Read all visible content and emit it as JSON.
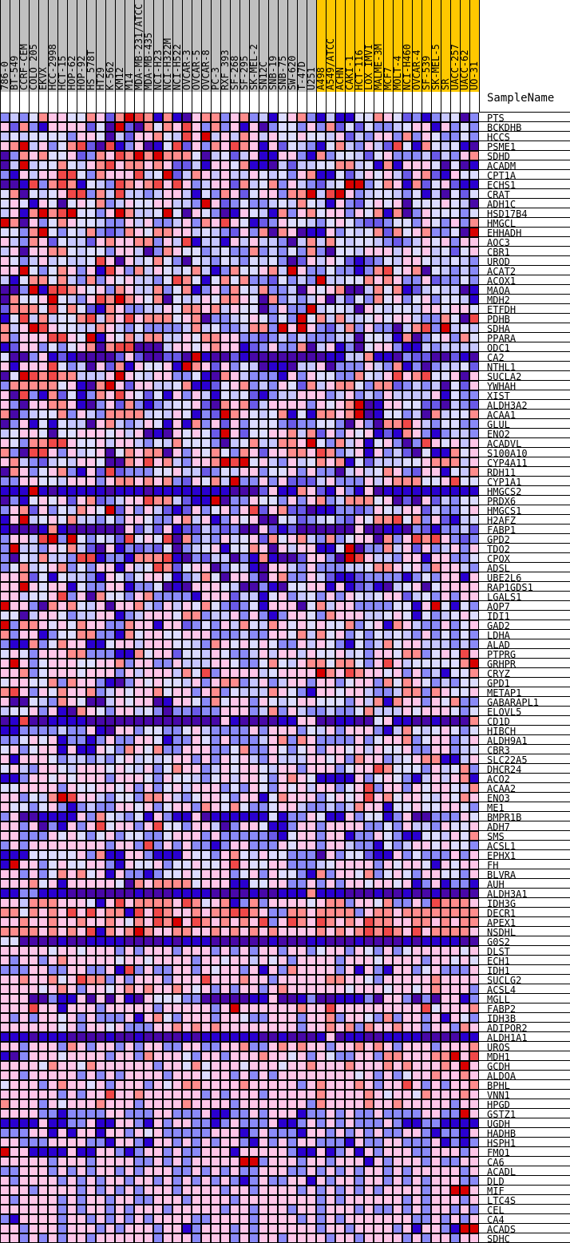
{
  "chart_data": {
    "type": "heatmap",
    "column_header_title": "SampleName",
    "group_colors": {
      "group1": "#c0c0c0",
      "group2": "#ffc800"
    },
    "color_scale": [
      "#2a00d0",
      "#4808a8",
      "#6a5ae8",
      "#8a8af8",
      "#c6c6ff",
      "#dcdcff",
      "#ffc6e8",
      "#ff8c8c",
      "#f04848",
      "#d80000"
    ],
    "color_scale_meaning": "low (blue) to high (red), levels 0-9",
    "columns": [
      "786-0",
      "BT-549",
      "CCRF-CEM",
      "COLO 205",
      "EKVX",
      "HCC-2998",
      "HCT-15",
      "HOP-62",
      "HOP-92",
      "HS 578T",
      "HT29",
      "K-562",
      "KM12",
      "M14",
      "MDA-MB-231/ATCC",
      "MDA-MB-435",
      "NCI-H23",
      "NCI-H322M",
      "NCI-H522",
      "OVCAR-3",
      "OVCAR-5",
      "OVCAR-8",
      "PC-3",
      "RXF 393",
      "SF-268",
      "SF-295",
      "SK-MEL-2",
      "SN12C",
      "SNB-19",
      "SNB-75",
      "SW-620",
      "T-47D",
      "U251",
      "A498",
      "A549/ATCC",
      "ACHN",
      "CAKI-1",
      "HCT-116",
      "LOX IMVI",
      "MALME-3M",
      "MCF7",
      "MOLT-4",
      "NCI-H460",
      "OVCAR-4",
      "SF-539",
      "SK-MEL-5",
      "SR",
      "UACC-257",
      "UACC-62",
      "UO-31"
    ],
    "column_groups": [
      "group1",
      "group1",
      "group1",
      "group1",
      "group1",
      "group1",
      "group1",
      "group1",
      "group1",
      "group1",
      "group1",
      "group1",
      "group1",
      "group1",
      "group1",
      "group1",
      "group1",
      "group1",
      "group1",
      "group1",
      "group1",
      "group1",
      "group1",
      "group1",
      "group1",
      "group1",
      "group1",
      "group1",
      "group1",
      "group1",
      "group1",
      "group1",
      "group1",
      "group2",
      "group2",
      "group2",
      "group2",
      "group2",
      "group2",
      "group2",
      "group2",
      "group2",
      "group2",
      "group2",
      "group2",
      "group2",
      "group2",
      "group2",
      "group2",
      "group2"
    ],
    "rows": [
      "PTS",
      "BCKDHB",
      "HCCS",
      "PSME1",
      "SDHD",
      "ACADM",
      "CPT1A",
      "ECHS1",
      "CRAT",
      "ADH1C",
      "HSD17B4",
      "HMGCL",
      "EHHADH",
      "AOC3",
      "CBR1",
      "UROD",
      "ACAT2",
      "ACOX1",
      "MAOA",
      "MDH2",
      "ETFDH",
      "PDHB",
      "SDHA",
      "PPARA",
      "ODC1",
      "CA2",
      "NTHL1",
      "SUCLA2",
      "YWHAH",
      "XIST",
      "ALDH3A2",
      "ACAA1",
      "GLUL",
      "ENO2",
      "ACADVL",
      "S100A10",
      "CYP4A11",
      "RDH11",
      "CYP1A1",
      "HMGCS2",
      "PRDX6",
      "HMGCS1",
      "H2AFZ",
      "FABP1",
      "GPD2",
      "TDO2",
      "CPOX",
      "ADSL",
      "UBE2L6",
      "RAP1GDS1",
      "LGALS1",
      "AQP7",
      "IDI1",
      "GAD2",
      "LDHA",
      "ALAD",
      "PTPRG",
      "GRHPR",
      "CRYZ",
      "GPD1",
      "METAP1",
      "GABARAPL1",
      "ELOVL5",
      "CD1D",
      "HIBCH",
      "ALDH9A1",
      "CBR3",
      "SLC22A5",
      "DHCR24",
      "ACO2",
      "ACAA2",
      "ENO3",
      "ME1",
      "BMPR1B",
      "ADH7",
      "SMS",
      "ACSL1",
      "EPHX1",
      "FH",
      "BLVRA",
      "AUH",
      "ALDH3A1",
      "IDH3G",
      "DECR1",
      "APEX1",
      "NSDHL",
      "G0S2",
      "DLST",
      "ECH1",
      "IDH1",
      "SUCLG2",
      "ACSL4",
      "MGLL",
      "FABP2",
      "IDH3B",
      "ADIPOR2",
      "ALDH1A1",
      "UROS",
      "MDH1",
      "GCDH",
      "ALDOA",
      "BPHL",
      "VNN1",
      "HPGD",
      "GSTZ1",
      "UGDH",
      "HADHB",
      "HSPH1",
      "FMO1",
      "CA6",
      "ACADL",
      "DLD",
      "MIF",
      "LTC4S",
      "CEL",
      "CA4",
      "ACADS",
      "SDHC"
    ],
    "values": [
      "34357665576279870701677367340567304005576523034513",
      "62730666625192175768637360613553637252533456606353",
      "45455553665142667548694647646556554624366373653353",
      "67946357821803610582637687606254305743642850754501",
      "13767556237687979777514524600663073554256333424367",
      "14945575467867767622406657001424455774507066651510",
      "30646688537666845924764644654536700524656426720655",
      "11083787054387678686346627457364324599357607256200",
      "57154568837484434664053762566377948963455435041525",
      "56506515657346556644396235334547540632565615556541",
      "46079789553697445951653106540736756636570713655535",
      "97163576554336463346376865023655435653223553653637",
      "55379535473237657766454326371761006354572756733519",
      "64376254426766773648044064644314747545543234656366",
      "46166775455366413765534533734353731554666465645256",
      "65346454458616457531543543545312646520235466544543",
      "66953576360863746545740375567496335330378567154343",
      "40577574373656443587505757332534394455767633623353",
      "11390887656376447357036375473341656711475702454410",
      "17556954368797657154465776517343461425375635635540",
      "27775857520763344657767465513633945541654554665665",
      "05847455784768677756713345653539574744565664337518",
      "74698655447643533334745334773969632473633147839454",
      "73666886590657477446577663323434333441554071356375",
      "02663535671788111466567660236337146031566300434444",
      "51136020111126211221901120111111110044700132211201",
      "60666853416270655609762635410014461333643703134452",
      "15987877444696546633501764333063655337546867855616",
      "37777756017962664457002567343652746775377234341526",
      "61830725037686525063640545203446663463436444460533",
      "63166776013627303455621767246666365679106655221432",
      "71345573643777745465032976545705077679105534174557",
      "13605054416743465060736263555323355316317786435533",
      "45665155666564610165652962556674726365602076303443",
      "65377886556466435475553145744776953746056313865646",
      "73188636456157677163657537626677687346063421500756",
      "67432454665117686743667989564364576705244455677746",
      "17635673062823335564423546635563633146457632660547",
      "33665546663677676732657493363622246333646777556855",
      "00090100000100010000000011126007620630610000000000",
      "13056562672346687742009133655363673477756121624355",
      "36726354765926364202635636826722100332365466243356",
      "06945657443536653367460365611542345326577857362045",
      "01110701111116242602243231162021111116110013203342",
      "36648939535428565817343645627567437356617368786323",
      "39443657421603232513456055761646600591337462634636",
      "31547443880330777801324413070112663198644366066335",
      "35745673536606458725661354016643633344577656376643",
      "66725054430653566503475166316733642002333303536606",
      "66965660533660335101666541130155660602301456156666",
      "66455683617553673333066624405634536365456624536366",
      "96631767546166743646575323506661574663333550695053",
      "55146653446603466657734463630366537666445650534565",
      "93776565766337660662353647547656565573560764336356",
      "73660355773307566556663334336657475635354543635353",
      "30073576600566466655437656565336465305347566444343",
      "56536667733300756625546533464664655645366577356586",
      "69635666556673663364446653357546775775368645555579",
      "66735666566636466647583666645666697687665636340557",
      "56655737663013656554636773463466366356637576534355",
      "78636576673465667566367354447653066566433477376556",
      "61154376511465661066537566365456655536470766365733",
      "45563601765366453133233666347364334335744465666535",
      "10811000011111111111111601111006611001156001101117",
      "00333343360166355335643333636663546366630475456535",
      "33565603303633665033653633346737633336356673566346",
      "56356606006537657336663357336535636656465563366345",
      "60666534434356454566363656436444665637663456770046",
      "56436654666565463576634656654663666356687555364573",
      "00366565666366653655435646653676500006356530464670",
      "55666636556656363564666353653656466356836636566547",
      "66354798664355377643566536605766635656867566546576",
      "65535630343366563566376575335664334347660556556653",
      "36110000637543506300610000005033650063550361133365",
      "66361306368566368553664136650036636666335364436556",
      "66333656535635533566636333332056636603365300554657",
      "36366666666366383636330366333656636643305346656553",
      "00055555637006630006553675465533316355200635333636",
      "09663565566306556355655686556633345666636566506566",
      "66363576756063303556566635636553073665735653665536",
      "66675606666651767777566600556633636366566560360330",
      "00330001111111011100001111011000700011101101101111",
      "66477766650686777768756703736666567736657336387776",
      "77576768686770868766767788763377677773677677777777",
      "66766766766765768796876767683687687676877667767677",
      "77776767680767976677667676767666676767878768677776",
      "55111101100001111010001111110111001110111101000011",
      "66666566566636366636663636366366356636536356666656",
      "63663676666656656666366566465636666366656666366565",
      "33366336633608363366365663606376666360630663563336",
      "66766756877363666366686667663666667766536666676666",
      "66665676366567676676563636636766666656665665676663",
      "66611300616160165553311111006110311000316631316603",
      "66686606663666663666663696666667668666666666856667",
      "63636656363336067536663665336663667366537366360653",
      "66666656366563336676767666666663667673766766366376",
      "00010001111011011110100000011011106100110000111100",
      "66366637636636366336633667336767663667676366636667",
      "01366656666366376665366366676656365336637766677968",
      "66665766576666663665756665666566766676667676667696",
      "66366666363636666366656636363666666665636356676676",
      "56663676656366636567766667666663676667636686363667",
      "66666636366866766666636366636666676666765665766676",
      "76663656667666366667666636666666376666766766666366",
      "66663303333663336633360033636660336363363333663396",
      "00006003360066306366330363336003636363336300330000",
      "33366060660663656333336660363330663636363366303306",
      "66333666633066306636363663063636633306336633360303",
      "96600006006630366363366606666630060360636663366636",
      "66666366636666336363666669936663663666063666363366",
      "33666363636636366633636363366633636363663636666636",
      "63666636363663663636363630363366063663663636366633",
      "66636666363636366636666366366663636363636666366996",
      "63666636366366336663666636666666636366666636366636",
      "66666636366363666366666366366636636663633636366363",
      "30666636636363636666336666366663636366666663363636",
      "66366636663636663660366636366666636636666360663099",
      "66363636636666663666366636366366663663666636366366"
    ]
  }
}
